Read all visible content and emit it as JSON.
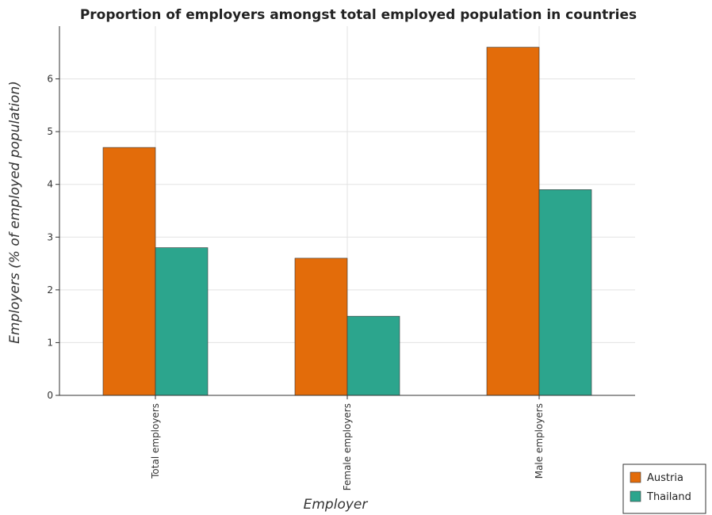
{
  "chart_data": {
    "type": "bar",
    "title": "Proportion of employers amongst total employed population in countries",
    "xlabel": "Employer",
    "ylabel": "Employers (% of employed population)",
    "categories": [
      "Total employers",
      "Female employers",
      "Male employers"
    ],
    "series": [
      {
        "name": "Austria",
        "values": [
          4.7,
          2.6,
          6.6
        ],
        "color": "#e36c0a"
      },
      {
        "name": "Thailand",
        "values": [
          2.8,
          1.5,
          3.9
        ],
        "color": "#2ca58d"
      }
    ],
    "ylim": [
      0,
      7
    ],
    "yticks": [
      "0",
      "1",
      "2",
      "3",
      "4",
      "5",
      "6"
    ],
    "grid": true,
    "legend_position": "bottom-right"
  }
}
